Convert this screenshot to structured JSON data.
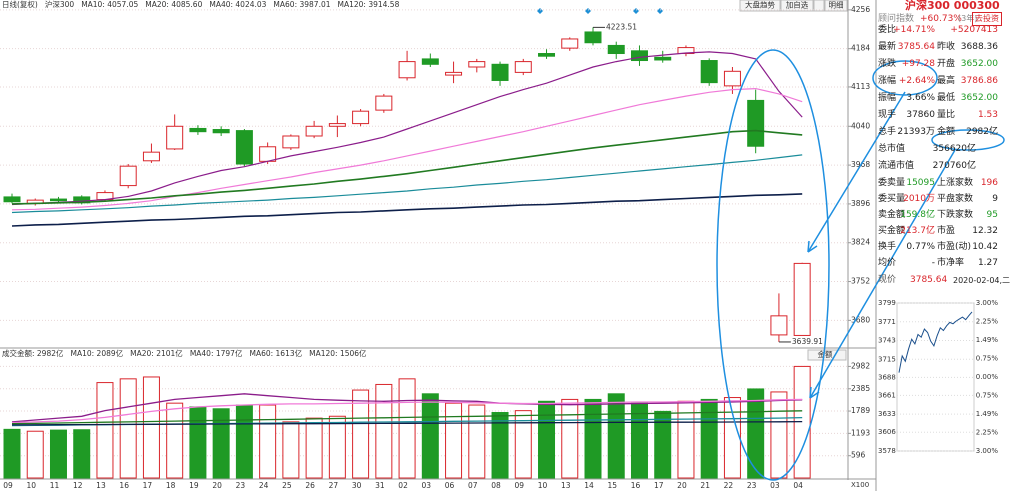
{
  "toolbar": [
    "大盘趋势",
    "加自选",
    "明细"
  ],
  "chart_data": [
    {
      "type": "candlestick",
      "title": "日线(复权)",
      "subtitle": "沪深300",
      "categories": [
        "09",
        "10",
        "11",
        "12",
        "13",
        "16",
        "17",
        "18",
        "19",
        "20",
        "23",
        "24",
        "25",
        "26",
        "27",
        "30",
        "31",
        "02",
        "03",
        "06",
        "07",
        "08",
        "09",
        "10",
        "13",
        "14",
        "15",
        "16",
        "17",
        "20",
        "21",
        "22",
        "23",
        "03",
        "04"
      ],
      "open": [
        3909,
        3897,
        3905,
        3909,
        3904,
        3930,
        3976,
        3998,
        4036,
        4034,
        4032,
        3975,
        4000,
        4022,
        4040,
        4045,
        4070,
        4130,
        4165,
        4135,
        4150,
        4155,
        4140,
        4175,
        4185,
        4215,
        4190,
        4180,
        4168,
        4175,
        4162,
        4115,
        4088,
        3653,
        3652.0
      ],
      "high": [
        3915,
        3906,
        3909,
        3912,
        3921,
        3970,
        4008,
        4062,
        4042,
        4040,
        4035,
        4010,
        4025,
        4050,
        4060,
        4072,
        4100,
        4180,
        4175,
        4160,
        4165,
        4160,
        4165,
        4183,
        4205,
        4223.51,
        4197,
        4190,
        4180,
        4190,
        4166,
        4150,
        4108,
        3730,
        3786.86
      ],
      "low": [
        3897,
        3893,
        3899,
        3895,
        3900,
        3925,
        3972,
        3996,
        4024,
        4022,
        3966,
        3970,
        3996,
        4018,
        4020,
        4040,
        4065,
        4125,
        4150,
        4120,
        4140,
        4115,
        4135,
        4165,
        4180,
        4190,
        4165,
        4152,
        4158,
        4170,
        4115,
        4100,
        3990,
        3639.91,
        3652
      ],
      "close": [
        3900,
        3903,
        3902,
        3898,
        3917,
        3966,
        3992,
        4040,
        4030,
        4028,
        3970,
        4002,
        4022,
        4040,
        4045,
        4068,
        4096,
        4160,
        4155,
        4140,
        4160,
        4125,
        4160,
        4170,
        4202,
        4195,
        4175,
        4162,
        4163,
        4186,
        4121,
        4142,
        4003,
        3688.36,
        3785.64
      ],
      "up_color": "#d9252b",
      "down_color": "#1f9a25",
      "series": [
        {
          "name": "MA10: 4057.05",
          "color": "#8b1d8b",
          "values": [
            3895,
            3897,
            3899,
            3901,
            3904,
            3910,
            3920,
            3935,
            3947,
            3958,
            3965,
            3975,
            3985,
            3993,
            4001,
            4010,
            4020,
            4035,
            4050,
            4065,
            4080,
            4095,
            4108,
            4120,
            4135,
            4150,
            4160,
            4168,
            4172,
            4176,
            4178,
            4175,
            4165,
            4105,
            4057.05
          ]
        },
        {
          "name": "MA20: 4085.60",
          "color": "#f07ad8",
          "values": [
            3885,
            3886,
            3888,
            3890,
            3893,
            3897,
            3902,
            3910,
            3917,
            3925,
            3932,
            3939,
            3946,
            3954,
            3961,
            3968,
            3976,
            3985,
            3994,
            4003,
            4012,
            4021,
            4030,
            4040,
            4050,
            4060,
            4070,
            4080,
            4088,
            4096,
            4103,
            4108,
            4110,
            4100,
            4085.6
          ]
        },
        {
          "name": "MA40: 4024.03",
          "color": "#217a21",
          "values": [
            3896,
            3897,
            3898,
            3899,
            3901,
            3904,
            3907,
            3911,
            3914,
            3918,
            3921,
            3925,
            3929,
            3933,
            3938,
            3942,
            3947,
            3952,
            3958,
            3964,
            3970,
            3976,
            3982,
            3988,
            3994,
            4000,
            4005,
            4010,
            4015,
            4020,
            4025,
            4030,
            4032,
            4028,
            4024.03
          ]
        },
        {
          "name": "MA60: 3987.01",
          "color": "#1a8c9a",
          "values": [
            3880,
            3882,
            3883,
            3885,
            3887,
            3889,
            3892,
            3894,
            3897,
            3899,
            3901,
            3903,
            3906,
            3908,
            3911,
            3914,
            3917,
            3920,
            3924,
            3927,
            3931,
            3934,
            3938,
            3941,
            3945,
            3949,
            3953,
            3957,
            3961,
            3965,
            3969,
            3973,
            3977,
            3982,
            3987.01
          ]
        },
        {
          "name": "MA120: 3914.58",
          "color": "#0d1f4a",
          "values": [
            3855,
            3857,
            3858,
            3860,
            3862,
            3864,
            3866,
            3867,
            3869,
            3871,
            3873,
            3874,
            3876,
            3878,
            3880,
            3881,
            3883,
            3885,
            3887,
            3888,
            3890,
            3892,
            3894,
            3895,
            3897,
            3899,
            3901,
            3902,
            3904,
            3906,
            3908,
            3910,
            3912,
            3913,
            3914.58
          ]
        }
      ],
      "ylim": [
        3625,
        4265
      ],
      "yticks": [
        4256,
        4184,
        4113,
        4040,
        3968,
        3896,
        3824,
        3752,
        3680
      ],
      "grid": true
    },
    {
      "type": "bar",
      "title": "成交金额: 2982亿",
      "selector": "金额",
      "unit": "X100",
      "values": [
        1300,
        1250,
        1280,
        1290,
        2550,
        2650,
        2700,
        2000,
        1900,
        1850,
        1950,
        1950,
        1500,
        1600,
        1650,
        2350,
        2500,
        2650,
        2250,
        2000,
        1950,
        1750,
        1800,
        2050,
        2100,
        2100,
        2250,
        2000,
        1780,
        2050,
        2100,
        2150,
        2380,
        2300,
        2982
      ],
      "up_color": "#d9252b",
      "down_color": "#1f9a25",
      "series": [
        {
          "name": "MA10: 2089亿",
          "color": "#8b1d8b",
          "values": [
            1500,
            1550,
            1600,
            1650,
            1800,
            1900,
            2000,
            2100,
            2150,
            2200,
            2250,
            2200,
            2150,
            2100,
            2080,
            2060,
            2050,
            2070,
            2080,
            2060,
            2050,
            2000,
            1980,
            1970,
            1960,
            1970,
            1980,
            1990,
            2000,
            2010,
            2020,
            2030,
            2050,
            2070,
            2089
          ]
        },
        {
          "name": "MA20: 2101亿",
          "color": "#f07ad8",
          "values": [
            1480,
            1500,
            1520,
            1560,
            1620,
            1700,
            1780,
            1850,
            1900,
            1930,
            1950,
            1970,
            1980,
            1980,
            1990,
            2000,
            2010,
            2020,
            2030,
            2020,
            2010,
            2000,
            1990,
            1990,
            2000,
            2010,
            2020,
            2030,
            2030,
            2040,
            2050,
            2060,
            2070,
            2090,
            2101
          ]
        },
        {
          "name": "MA40: 1797亿",
          "color": "#217a21",
          "values": [
            1450,
            1460,
            1470,
            1480,
            1490,
            1500,
            1510,
            1520,
            1530,
            1540,
            1550,
            1560,
            1570,
            1580,
            1590,
            1600,
            1610,
            1620,
            1630,
            1640,
            1650,
            1660,
            1670,
            1680,
            1690,
            1700,
            1710,
            1720,
            1730,
            1740,
            1750,
            1760,
            1770,
            1785,
            1797
          ]
        },
        {
          "name": "MA60: 1613亿",
          "color": "#1a8c9a",
          "values": [
            1400,
            1406,
            1412,
            1418,
            1424,
            1430,
            1436,
            1442,
            1448,
            1454,
            1460,
            1466,
            1472,
            1478,
            1484,
            1490,
            1496,
            1502,
            1508,
            1514,
            1520,
            1526,
            1532,
            1538,
            1544,
            1550,
            1556,
            1562,
            1568,
            1574,
            1580,
            1586,
            1592,
            1600,
            1613
          ]
        },
        {
          "name": "MA120: 1506亿",
          "color": "#0d1f4a",
          "values": [
            1420,
            1422,
            1425,
            1427,
            1430,
            1432,
            1435,
            1437,
            1440,
            1442,
            1445,
            1447,
            1450,
            1452,
            1455,
            1457,
            1460,
            1462,
            1465,
            1467,
            1470,
            1472,
            1475,
            1477,
            1480,
            1482,
            1485,
            1487,
            1490,
            1492,
            1495,
            1497,
            1500,
            1503,
            1506
          ]
        }
      ],
      "ylim": [
        0,
        3100
      ],
      "yticks": [
        596,
        1193,
        1789,
        2385,
        2982
      ],
      "grid": true
    },
    {
      "type": "line",
      "title": "现价",
      "price": "3785.64",
      "date": "2020-02-04,二",
      "color": "#1a4f8c",
      "values": [
        3695,
        3720,
        3712,
        3730,
        3745,
        3738,
        3752,
        3748,
        3760,
        3755,
        3742,
        3735,
        3750,
        3762,
        3758,
        3765,
        3770,
        3768,
        3772,
        3775,
        3778,
        3774,
        3780,
        3785.64
      ],
      "ylim": [
        3578,
        3799
      ],
      "yticks": [
        3799,
        3771,
        3743,
        3715,
        3688,
        3661,
        3633,
        3606,
        3578
      ],
      "y2lim": [
        -3,
        3
      ],
      "y2ticks": [
        {
          "value": 3,
          "label": "3.00%"
        },
        {
          "value": 2.25,
          "label": "2.25%"
        },
        {
          "value": 1.49,
          "label": "1.49%"
        },
        {
          "value": 0.75,
          "label": "0.75%"
        },
        {
          "value": 0,
          "label": "0.00%"
        },
        {
          "value": -0.75,
          "label": "0.75%"
        },
        {
          "value": -1.49,
          "label": "1.49%"
        },
        {
          "value": -2.25,
          "label": "2.25%"
        },
        {
          "value": -3,
          "label": "3.00%"
        }
      ],
      "grid": true
    }
  ],
  "quote_panel": {
    "name": "沪深300 000300",
    "advisor": "顾问指数",
    "advisor_value": "+60.73%",
    "advisor_period": "(3年)",
    "button": "去投资",
    "rows": [
      [
        "委比",
        "+14.71%",
        "+5207413"
      ],
      [
        "最新",
        "3785.64",
        "昨收",
        "3688.36"
      ],
      [
        "涨跌",
        "+97.28",
        "开盘",
        "3652.00"
      ],
      [
        "涨幅",
        "+2.64%",
        "最高",
        "3786.86"
      ],
      [
        "振幅",
        "3.66%",
        "最低",
        "3652.00"
      ],
      [
        "现手",
        "37860",
        "量比",
        "1.53"
      ],
      [
        "总手",
        "21393万",
        "金额",
        "2982亿"
      ],
      [
        "总市值",
        "356620亿"
      ],
      [
        "流通市值",
        "270760亿"
      ],
      [
        "委卖量",
        "15095",
        "上涨家数",
        "196"
      ],
      [
        "委买量",
        "2010万",
        "平盘家数",
        "9"
      ],
      [
        "卖金额",
        "159.8亿",
        "下跌家数",
        "95"
      ],
      [
        "买金额",
        "213.7亿",
        "市盈",
        "12.32"
      ],
      [
        "换手",
        "0.77%",
        "市盈(动)",
        "10.42"
      ],
      [
        "均价",
        "-",
        "市净率",
        "1.27"
      ]
    ],
    "tones": [
      [
        "flat",
        "up",
        "up"
      ],
      [
        "flat",
        "up",
        "flat",
        "flat"
      ],
      [
        "flat",
        "up",
        "flat",
        "down"
      ],
      [
        "flat",
        "up",
        "flat",
        "up"
      ],
      [
        "flat",
        "flat",
        "flat",
        "down"
      ],
      [
        "flat",
        "flat",
        "flat",
        "up"
      ],
      [
        "flat",
        "flat",
        "flat",
        "flat"
      ],
      [
        "flat",
        "flat"
      ],
      [
        "flat",
        "flat"
      ],
      [
        "flat",
        "down",
        "flat",
        "up"
      ],
      [
        "flat",
        "up",
        "flat",
        "flat"
      ],
      [
        "flat",
        "down",
        "flat",
        "down"
      ],
      [
        "flat",
        "up",
        "flat",
        "flat"
      ],
      [
        "flat",
        "flat",
        "flat",
        "flat"
      ],
      [
        "flat",
        "flat",
        "flat",
        "flat"
      ]
    ]
  }
}
